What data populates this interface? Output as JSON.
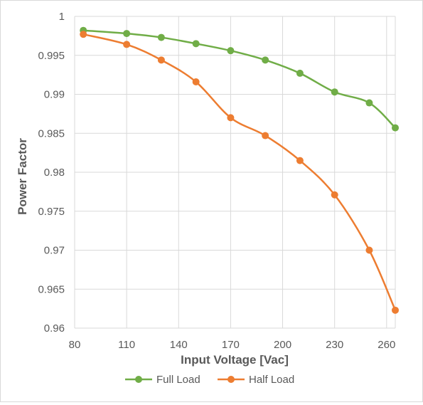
{
  "chart_data": {
    "type": "line",
    "xlabel": "Input Voltage [Vac]",
    "ylabel": "Power Factor",
    "xlim": [
      80,
      265
    ],
    "ylim": [
      0.96,
      1.0
    ],
    "x_ticks": [
      80,
      110,
      140,
      170,
      200,
      230,
      260
    ],
    "y_ticks": [
      0.96,
      0.965,
      0.97,
      0.975,
      0.98,
      0.985,
      0.99,
      0.995,
      1
    ],
    "y_tick_labels": [
      "0.96",
      "0.965",
      "0.97",
      "0.975",
      "0.98",
      "0.985",
      "0.99",
      "0.995",
      "1"
    ],
    "grid": true,
    "legend_position": "bottom",
    "series": [
      {
        "name": "Full Load",
        "color": "#70ad47",
        "x": [
          85,
          110,
          130,
          150,
          170,
          190,
          210,
          230,
          250,
          265
        ],
        "y": [
          0.9982,
          0.9978,
          0.9973,
          0.9965,
          0.9956,
          0.9944,
          0.9927,
          0.9903,
          0.9889,
          0.9857
        ]
      },
      {
        "name": "Half Load",
        "color": "#ed7d31",
        "x": [
          85,
          110,
          130,
          150,
          170,
          190,
          210,
          230,
          250,
          265
        ],
        "y": [
          0.9977,
          0.9964,
          0.9944,
          0.9916,
          0.987,
          0.9847,
          0.9815,
          0.9771,
          0.97,
          0.9623
        ]
      }
    ]
  }
}
